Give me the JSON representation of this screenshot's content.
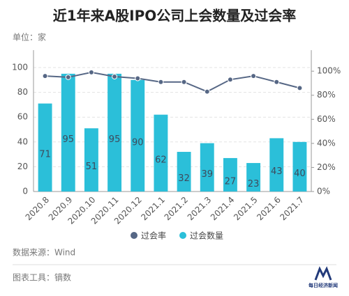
{
  "chart_data": {
    "type": "bar-line",
    "title": "近1年来A股IPO公司上会数量及过会率",
    "unit_label": "单位：家",
    "categories": [
      "2020.8",
      "2020.9",
      "2020.10",
      "2020.11",
      "2020.12",
      "2021.1",
      "2021.2",
      "2021.3",
      "2021.4",
      "2021.5",
      "2021.6",
      "2021.7"
    ],
    "series": [
      {
        "name": "过会率",
        "color": "#566785",
        "axis": "y2",
        "type": "line",
        "values": [
          96,
          95,
          99,
          95.5,
          94,
          91,
          91,
          83,
          93,
          96,
          91,
          86
        ]
      },
      {
        "name": "过会数量",
        "color": "#2bbfd9",
        "type": "bar",
        "values": [
          71,
          95,
          51,
          95,
          90,
          62,
          32,
          39,
          27,
          23,
          43,
          40
        ]
      }
    ],
    "ylim": [
      0,
      100
    ],
    "yticks": [
      0,
      20,
      40,
      60,
      80,
      100
    ],
    "y2lim": [
      0,
      103
    ],
    "y2ticks": [
      {
        "value": 0,
        "label": "0%"
      },
      {
        "value": 20,
        "label": "20%"
      },
      {
        "value": 40,
        "label": "40%"
      },
      {
        "value": 60,
        "label": "60%"
      },
      {
        "value": 80,
        "label": "80%"
      },
      {
        "value": 100,
        "label": "100%"
      }
    ],
    "grid": true,
    "source": "数据来源：Wind",
    "tool": "图表工具：镝数",
    "logo": "每日经济新闻"
  }
}
